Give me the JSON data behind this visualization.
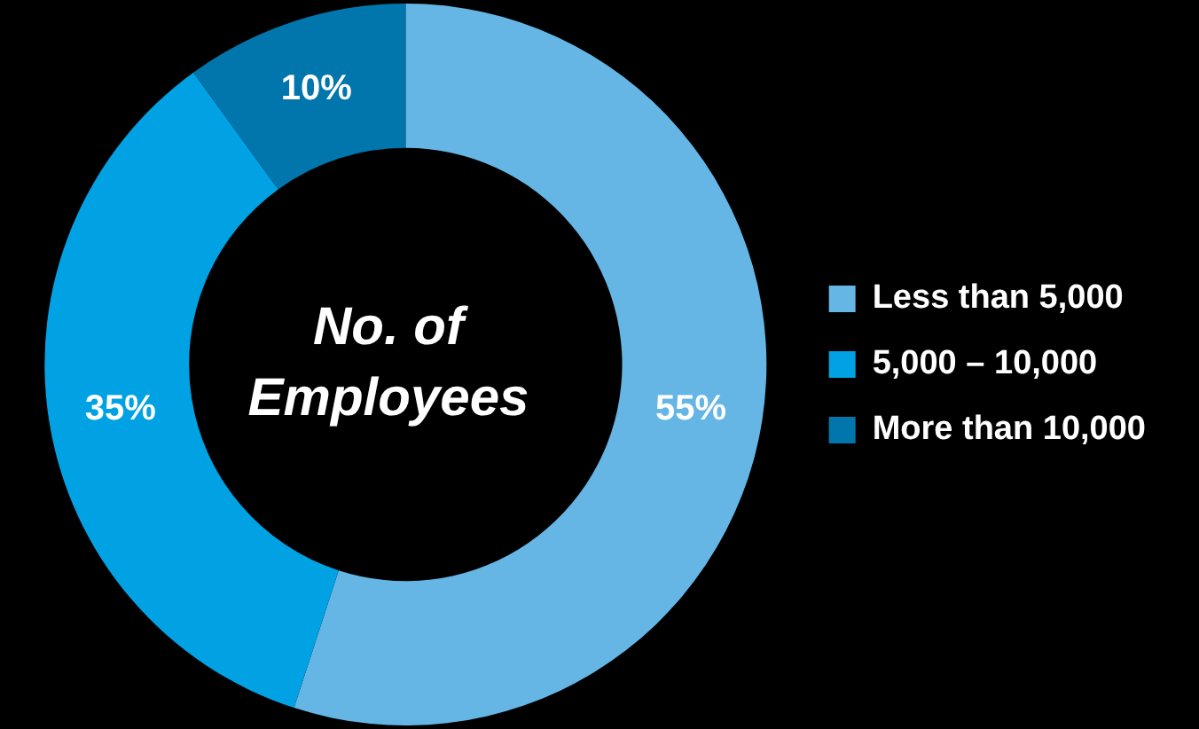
{
  "chart_data": {
    "type": "donut",
    "title": "No. of Employees",
    "categories": [
      "Less than 5,000",
      "5,000 – 10,000",
      "More than 10,000"
    ],
    "values": [
      55,
      35,
      10
    ],
    "value_labels": [
      "55%",
      "35%",
      "10%"
    ],
    "colors": [
      "#65b5e5",
      "#00a2e3",
      "#0076ad"
    ],
    "legend": "right"
  }
}
